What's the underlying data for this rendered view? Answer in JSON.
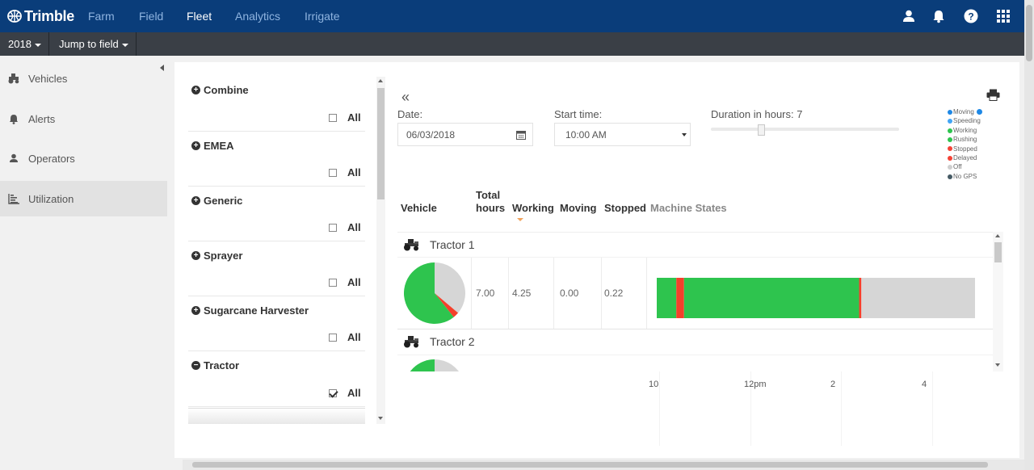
{
  "brand": "Trimble",
  "nav": {
    "items": [
      "Farm",
      "Field",
      "Fleet",
      "Analytics",
      "Irrigate"
    ],
    "active": "Fleet",
    "icons": [
      "user-icon",
      "bell-icon",
      "help-icon",
      "apps-grid-icon"
    ]
  },
  "subbar": {
    "year": "2018",
    "jump": "Jump to field"
  },
  "sidebar": {
    "items": [
      {
        "label": "Vehicles",
        "icon": "tractor-icon"
      },
      {
        "label": "Alerts",
        "icon": "bell-icon"
      },
      {
        "label": "Operators",
        "icon": "user-icon"
      },
      {
        "label": "Utilization",
        "icon": "bar-chart-icon",
        "active": true
      }
    ]
  },
  "groups": [
    {
      "name": "Combine",
      "all": "All",
      "checked": false,
      "expanded": false
    },
    {
      "name": "EMEA",
      "all": "All",
      "checked": false,
      "expanded": false
    },
    {
      "name": "Generic",
      "all": "All",
      "checked": false,
      "expanded": false
    },
    {
      "name": "Sprayer",
      "all": "All",
      "checked": false,
      "expanded": false
    },
    {
      "name": "Sugarcane Harvester",
      "all": "All",
      "checked": false,
      "expanded": false
    },
    {
      "name": "Tractor",
      "all": "All",
      "checked": true,
      "expanded": true
    }
  ],
  "controls": {
    "date_label": "Date:",
    "date_value": "06/03/2018",
    "start_label": "Start time:",
    "start_value": "10:00 AM",
    "duration_label": "Duration in hours: 7"
  },
  "legend": [
    {
      "label": "Moving",
      "color": "#1e88e5"
    },
    {
      "label": "Speeding",
      "color": "#42a5f5"
    },
    {
      "label": "Working",
      "color": "#2ec44e"
    },
    {
      "label": "Rushing",
      "color": "#2ec44e"
    },
    {
      "label": "Stopped",
      "color": "#f44336"
    },
    {
      "label": "Delayed",
      "color": "#f44336"
    },
    {
      "label": "Off",
      "color": "#cfcfcf"
    },
    {
      "label": "No GPS",
      "color": "#455a64"
    }
  ],
  "columns": {
    "vehicle": "Vehicle",
    "total_1": "Total",
    "total_2": "hours",
    "working": "Working",
    "moving": "Moving",
    "stopped": "Stopped",
    "states": "Machine States"
  },
  "rows": [
    {
      "name": "Tractor 1",
      "total": "7.00",
      "working": "4.25",
      "moving": "0.00",
      "stopped": "0.22",
      "pie": {
        "working": 4.25,
        "stopped": 0.22,
        "off": 2.53
      }
    },
    {
      "name": "Tractor 2"
    }
  ],
  "timeline": {
    "start_hour": 10,
    "end_hour": 17,
    "segments": [
      {
        "state": "working",
        "from": 10.0,
        "to": 10.43,
        "color": "#2ec44e"
      },
      {
        "state": "stopped",
        "from": 10.43,
        "to": 10.6,
        "color": "#f4402b"
      },
      {
        "state": "working",
        "from": 10.6,
        "to": 14.45,
        "color": "#2ec44e"
      },
      {
        "state": "stopped",
        "from": 14.45,
        "to": 14.5,
        "color": "#f4402b"
      },
      {
        "state": "off",
        "from": 14.5,
        "to": 17.0,
        "color": "#d6d6d6"
      }
    ]
  },
  "axis_ticks": [
    "10",
    "12pm",
    "2",
    "4"
  ]
}
